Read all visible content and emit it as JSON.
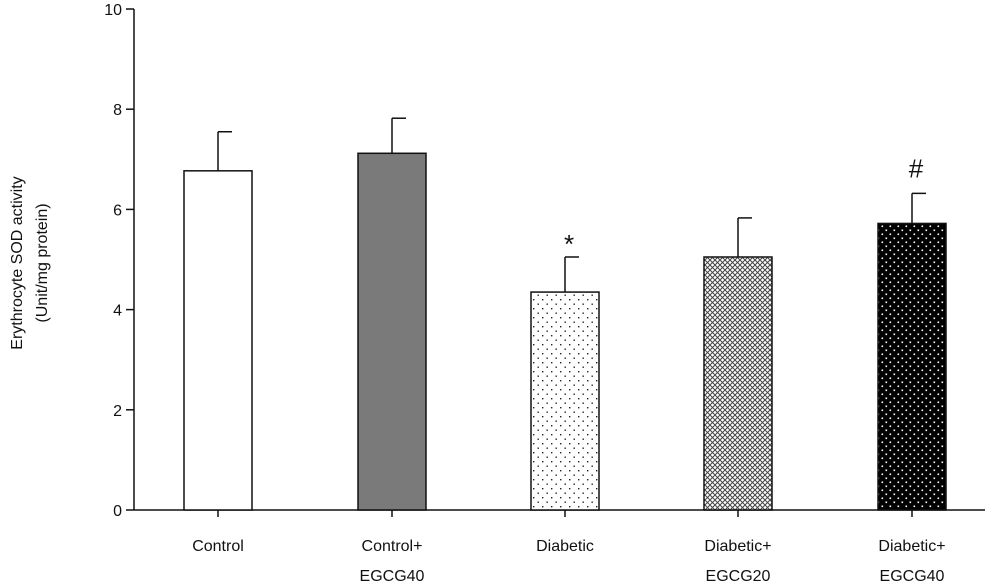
{
  "chart_data": {
    "type": "bar",
    "ylabel_lines": [
      "Erythrocyte SOD activity",
      "(Unit/mg protein)"
    ],
    "ylim": [
      0,
      10
    ],
    "yticks": [
      0,
      2,
      4,
      6,
      8,
      10
    ],
    "grid": false,
    "categories": [
      [
        "Control"
      ],
      [
        "Control+",
        "EGCG40"
      ],
      [
        "Diabetic"
      ],
      [
        "Diabetic+",
        "EGCG20"
      ],
      [
        "Diabetic+",
        "EGCG40"
      ]
    ],
    "values": [
      6.77,
      7.12,
      4.35,
      5.05,
      5.72
    ],
    "errors": [
      0.78,
      0.7,
      0.7,
      0.78,
      0.6
    ],
    "annotations": [
      "",
      "",
      "*",
      "",
      "#"
    ],
    "fills": [
      "white",
      "gray-solid",
      "sparse-dots",
      "crosshatch",
      "black-dots"
    ],
    "colors": {
      "axis": "#111111",
      "gray_bar": "#7a7a7a",
      "black_bar": "#000000"
    }
  }
}
